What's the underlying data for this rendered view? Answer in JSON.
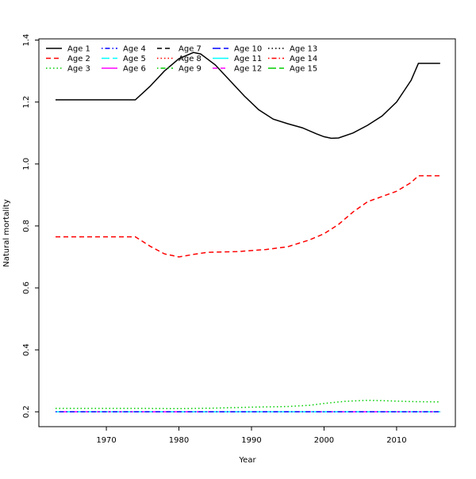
{
  "chart_data": {
    "type": "line",
    "title": "",
    "xlabel": "Year",
    "ylabel": "Natural mortality",
    "xlim": [
      1960.7,
      2018.1
    ],
    "ylim": [
      0.152,
      1.404
    ],
    "xticks": [
      1970,
      1980,
      1990,
      2000,
      2010
    ],
    "yticks": [
      0.2,
      0.4,
      0.6,
      0.8,
      1.0,
      1.2,
      1.4
    ],
    "ytick_labels": [
      "0.2",
      "0.4",
      "0.6",
      "0.8",
      "1.0",
      "1.2",
      "1.4"
    ],
    "grid": false,
    "legend_position": "top-left",
    "series": [
      {
        "name": "Age 1",
        "color": "#000000",
        "dash": "solid",
        "x": [
          1963,
          1974,
          1976,
          1978,
          1980,
          1982,
          1983,
          1985,
          1987,
          1989,
          1991,
          1993,
          1995,
          1997,
          1999,
          2000,
          2001,
          2002,
          2004,
          2006,
          2008,
          2010,
          2012,
          2013,
          2016
        ],
        "y": [
          1.207,
          1.207,
          1.25,
          1.3,
          1.34,
          1.36,
          1.355,
          1.32,
          1.27,
          1.22,
          1.175,
          1.145,
          1.13,
          1.117,
          1.097,
          1.088,
          1.083,
          1.084,
          1.1,
          1.125,
          1.155,
          1.2,
          1.27,
          1.325,
          1.325
        ]
      },
      {
        "name": "Age 2",
        "color": "#FF0000",
        "dash": "dashed",
        "x": [
          1963,
          1974,
          1976,
          1978,
          1980,
          1982,
          1984,
          1988,
          1992,
          1995,
          1998,
          2000,
          2002,
          2004,
          2006,
          2008,
          2010,
          2012,
          2013,
          2016
        ],
        "y": [
          0.765,
          0.765,
          0.735,
          0.71,
          0.7,
          0.708,
          0.715,
          0.717,
          0.724,
          0.733,
          0.755,
          0.775,
          0.805,
          0.845,
          0.878,
          0.895,
          0.912,
          0.94,
          0.962,
          0.962
        ]
      },
      {
        "name": "Age 3",
        "color": "#00CD00",
        "dash": "dotted",
        "x": [
          1963,
          1975,
          1980,
          1985,
          1990,
          1995,
          1998,
          2000,
          2003,
          2006,
          2008,
          2012,
          2016
        ],
        "y": [
          0.211,
          0.211,
          0.21,
          0.212,
          0.215,
          0.217,
          0.221,
          0.227,
          0.234,
          0.237,
          0.236,
          0.233,
          0.232
        ]
      },
      {
        "name": "Age 4",
        "color": "#0000FF",
        "dash": "dotdash",
        "x": [
          1963,
          2016
        ],
        "y": [
          0.2,
          0.2
        ]
      },
      {
        "name": "Age 5",
        "color": "#00FFFF",
        "dash": "longdash",
        "x": [
          1963,
          2016
        ],
        "y": [
          0.2,
          0.2
        ]
      },
      {
        "name": "Age 6",
        "color": "#FF00FF",
        "dash": "solid",
        "x": [
          1963,
          2016
        ],
        "y": [
          0.2,
          0.2
        ]
      },
      {
        "name": "Age 7",
        "color": "#000000",
        "dash": "dashed",
        "x": [
          1963,
          2016
        ],
        "y": [
          0.2,
          0.2
        ]
      },
      {
        "name": "Age 8",
        "color": "#FF0000",
        "dash": "dotted",
        "x": [
          1963,
          2016
        ],
        "y": [
          0.2,
          0.2
        ]
      },
      {
        "name": "Age 9",
        "color": "#00CD00",
        "dash": "dotdash",
        "x": [
          1963,
          2016
        ],
        "y": [
          0.2,
          0.2
        ]
      },
      {
        "name": "Age 10",
        "color": "#0000FF",
        "dash": "longdash",
        "x": [
          1963,
          2016
        ],
        "y": [
          0.2,
          0.2
        ]
      },
      {
        "name": "Age 11",
        "color": "#00FFFF",
        "dash": "solid",
        "x": [
          1963,
          2016
        ],
        "y": [
          0.2,
          0.2
        ]
      },
      {
        "name": "Age 12",
        "color": "#FF00FF",
        "dash": "dashed",
        "x": [
          1963,
          2016
        ],
        "y": [
          0.2,
          0.2
        ]
      },
      {
        "name": "Age 13",
        "color": "#000000",
        "dash": "dotted",
        "x": [
          1963,
          2016
        ],
        "y": [
          0.2,
          0.2
        ]
      },
      {
        "name": "Age 14",
        "color": "#FF0000",
        "dash": "dotdash",
        "x": [
          1963,
          2016
        ],
        "y": [
          0.2,
          0.2
        ]
      },
      {
        "name": "Age 15",
        "color": "#00CD00",
        "dash": "longdash",
        "x": [
          1963,
          2016
        ],
        "y": [
          0.2,
          0.2
        ]
      }
    ]
  }
}
